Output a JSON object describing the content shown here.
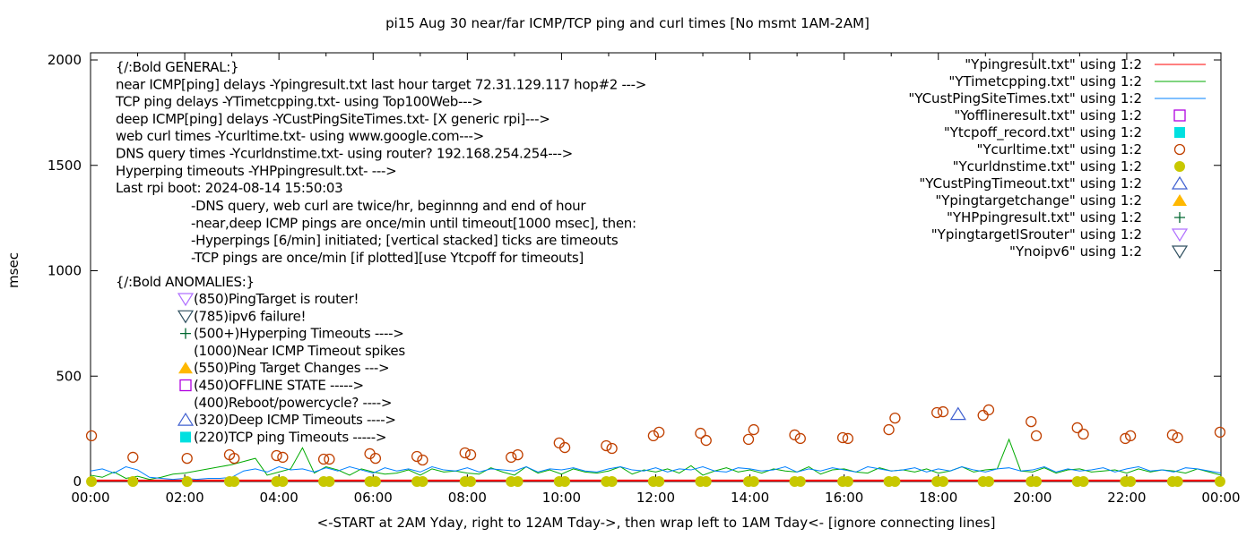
{
  "chart_data": {
    "type": "line",
    "title": "pi15 Aug 30  near/far ICMP/TCP ping and curl times [No msmt 1AM-2AM]",
    "xlabel": "<-START at 2AM Yday, right to 12AM Tday->, then wrap left to 1AM Tday<- [ignore connecting lines]",
    "ylabel": "msec",
    "xlim": [
      0,
      24
    ],
    "ylim": [
      0,
      2050
    ],
    "x_tick_labels": [
      "00:00",
      "02:00",
      "04:00",
      "06:00",
      "08:00",
      "10:00",
      "12:00",
      "14:00",
      "16:00",
      "18:00",
      "20:00",
      "22:00",
      "00:00"
    ],
    "y_ticks": [
      0,
      500,
      1000,
      1500,
      2000
    ],
    "legend_position": "top-right",
    "colors": {
      "ping": "#ff0000",
      "tcp": "#00aa00",
      "cust": "#0080ff",
      "offline": "#b000e0",
      "tcpoff": "#00e0e0",
      "curl": "#c04000",
      "dns": "#c8c800",
      "custTimeout": "#4060d0",
      "targetchange": "#ffb800",
      "hp": "#006830",
      "isrouter": "#b070ff",
      "noipv6": "#305060"
    },
    "series": [
      {
        "name": "\"Ypingresult.txt\" using 1:2",
        "key": "ping",
        "style": "line",
        "x_step_hours": 0.25,
        "values": [
          5,
          5,
          5,
          5,
          5,
          5,
          5,
          5,
          5,
          5,
          5,
          5,
          5,
          5,
          5,
          5,
          5,
          5,
          5,
          5,
          5,
          5,
          5,
          5,
          5,
          5,
          5,
          5,
          5,
          5,
          5,
          5,
          5,
          5,
          5,
          5,
          5,
          5,
          5,
          5,
          5,
          5,
          5,
          5,
          5,
          5,
          5,
          5,
          5,
          5,
          5,
          5,
          5,
          5,
          5,
          5,
          5,
          5,
          5,
          5,
          5,
          5,
          5,
          5,
          5,
          5,
          5,
          5,
          5,
          5,
          5,
          5,
          5,
          5,
          5,
          5,
          5,
          5,
          5,
          5,
          5,
          5,
          5,
          5,
          5,
          5,
          5,
          5,
          5,
          5,
          5,
          5,
          5,
          5,
          5,
          5,
          5
        ]
      },
      {
        "name": "\"YTimetcpping.txt\" using 1:2",
        "key": "tcp",
        "style": "line",
        "x_step_hours": 0.25,
        "values": [
          30,
          20,
          45,
          15,
          25,
          10,
          20,
          35,
          40,
          50,
          60,
          70,
          80,
          95,
          110,
          30,
          45,
          60,
          160,
          40,
          70,
          55,
          30,
          60,
          45,
          35,
          40,
          55,
          30,
          60,
          45,
          50,
          40,
          35,
          65,
          45,
          30,
          70,
          40,
          55,
          35,
          60,
          45,
          40,
          50,
          70,
          35,
          55,
          45,
          60,
          40,
          75,
          30,
          50,
          65,
          45,
          55,
          40,
          60,
          50,
          45,
          70,
          35,
          55,
          60,
          45,
          40,
          65,
          50,
          55,
          45,
          60,
          40,
          50,
          70,
          45,
          55,
          60,
          200,
          50,
          45,
          65,
          40,
          55,
          60,
          45,
          50,
          55,
          40,
          60,
          45,
          55,
          50,
          40,
          60,
          45,
          30
        ]
      },
      {
        "name": "\"YCustPingSiteTimes.txt\" using 1:2",
        "key": "cust",
        "style": "line",
        "x_step_hours": 0.25,
        "values": [
          50,
          60,
          40,
          70,
          55,
          20,
          15,
          10,
          15,
          10,
          15,
          15,
          20,
          50,
          60,
          45,
          70,
          55,
          60,
          45,
          65,
          50,
          70,
          55,
          40,
          65,
          50,
          60,
          45,
          70,
          55,
          50,
          65,
          45,
          60,
          55,
          50,
          70,
          45,
          60,
          55,
          65,
          50,
          45,
          60,
          70,
          55,
          50,
          65,
          45,
          60,
          55,
          70,
          50,
          45,
          65,
          60,
          50,
          55,
          70,
          45,
          60,
          50,
          65,
          55,
          45,
          70,
          60,
          50,
          55,
          65,
          45,
          60,
          50,
          70,
          55,
          45,
          60,
          65,
          50,
          55,
          70,
          45,
          60,
          50,
          55,
          65,
          45,
          60,
          70,
          50,
          55,
          45,
          65,
          60,
          50,
          40
        ]
      },
      {
        "name": "\"Yofflineresult.txt\" using 1:2",
        "key": "offline",
        "style": "open-square",
        "points": []
      },
      {
        "name": "\"Ytcpoff_record.txt\" using 1:2",
        "key": "tcpoff",
        "style": "filled-square",
        "points": []
      },
      {
        "name": "\"Ycurltime.txt\" using 1:2",
        "key": "curl",
        "style": "open-circle",
        "points": [
          [
            0.02,
            217
          ],
          [
            0.9,
            115
          ],
          [
            2.05,
            110
          ],
          [
            2.95,
            127
          ],
          [
            3.05,
            110
          ],
          [
            3.95,
            123
          ],
          [
            4.08,
            115
          ],
          [
            4.95,
            106
          ],
          [
            5.07,
            106
          ],
          [
            5.93,
            132
          ],
          [
            6.05,
            110
          ],
          [
            6.93,
            119
          ],
          [
            7.05,
            102
          ],
          [
            7.95,
            136
          ],
          [
            8.07,
            127
          ],
          [
            8.93,
            115
          ],
          [
            9.07,
            127
          ],
          [
            9.95,
            183
          ],
          [
            10.07,
            161
          ],
          [
            10.95,
            170
          ],
          [
            11.07,
            157
          ],
          [
            11.95,
            217
          ],
          [
            12.07,
            234
          ],
          [
            12.95,
            229
          ],
          [
            13.07,
            195
          ],
          [
            13.97,
            200
          ],
          [
            14.08,
            246
          ],
          [
            14.95,
            221
          ],
          [
            15.07,
            204
          ],
          [
            15.97,
            208
          ],
          [
            16.08,
            204
          ],
          [
            16.95,
            246
          ],
          [
            17.08,
            301
          ],
          [
            17.97,
            327
          ],
          [
            18.1,
            331
          ],
          [
            18.95,
            314
          ],
          [
            19.07,
            340
          ],
          [
            19.97,
            284
          ],
          [
            20.08,
            217
          ],
          [
            20.95,
            255
          ],
          [
            21.08,
            225
          ],
          [
            21.97,
            204
          ],
          [
            22.08,
            217
          ],
          [
            22.97,
            221
          ],
          [
            23.08,
            208
          ],
          [
            23.98,
            234
          ]
        ]
      },
      {
        "name": "\"Ycurldnstime.txt\" using 1:2",
        "key": "dns",
        "style": "filled-circle",
        "points": [
          [
            0.02,
            0
          ],
          [
            0.9,
            0
          ],
          [
            2.05,
            0
          ],
          [
            2.95,
            0
          ],
          [
            3.05,
            0
          ],
          [
            3.95,
            0
          ],
          [
            4.08,
            0
          ],
          [
            4.95,
            0
          ],
          [
            5.07,
            0
          ],
          [
            5.93,
            0
          ],
          [
            6.05,
            0
          ],
          [
            6.93,
            0
          ],
          [
            7.05,
            0
          ],
          [
            7.95,
            0
          ],
          [
            8.07,
            0
          ],
          [
            8.93,
            0
          ],
          [
            9.07,
            0
          ],
          [
            9.95,
            0
          ],
          [
            10.07,
            0
          ],
          [
            10.95,
            0
          ],
          [
            11.07,
            0
          ],
          [
            11.95,
            0
          ],
          [
            12.07,
            0
          ],
          [
            12.95,
            0
          ],
          [
            13.07,
            0
          ],
          [
            13.97,
            0
          ],
          [
            14.08,
            0
          ],
          [
            14.95,
            0
          ],
          [
            15.07,
            0
          ],
          [
            15.97,
            0
          ],
          [
            16.08,
            0
          ],
          [
            16.95,
            0
          ],
          [
            17.08,
            0
          ],
          [
            17.97,
            0
          ],
          [
            18.1,
            0
          ],
          [
            18.95,
            0
          ],
          [
            19.07,
            0
          ],
          [
            19.97,
            0
          ],
          [
            20.08,
            0
          ],
          [
            20.95,
            0
          ],
          [
            21.08,
            0
          ],
          [
            21.97,
            0
          ],
          [
            22.08,
            0
          ],
          [
            22.97,
            0
          ],
          [
            23.08,
            0
          ],
          [
            23.98,
            0
          ]
        ]
      },
      {
        "name": "\"YCustPingTimeout.txt\" using 1:2",
        "key": "custTimeout",
        "style": "open-triangle",
        "points": [
          [
            18.42,
            320
          ]
        ]
      },
      {
        "name": "\"Ypingtargetchange\" using 1:2",
        "key": "targetchange",
        "style": "filled-triangle",
        "points": []
      },
      {
        "name": "\"YHPpingresult.txt\" using 1:2",
        "key": "hp",
        "style": "plus",
        "points": []
      },
      {
        "name": "\"YpingtargetISrouter\" using 1:2",
        "key": "isrouter",
        "style": "open-triangle-down",
        "points": []
      },
      {
        "name": "\"Ynoipv6\" using 1:2",
        "key": "noipv6",
        "style": "open-triangle-down",
        "points": []
      }
    ],
    "annotations": {
      "general": [
        "{/:Bold GENERAL:}",
        "near ICMP[ping] delays -Ypingresult.txt last hour target 72.31.129.117 hop#2 --->",
        "TCP ping delays -YTimetcpping.txt- using Top100Web--->",
        "deep ICMP[ping] delays -YCustPingSiteTimes.txt- [X generic rpi]--->",
        "web curl times -Ycurltime.txt- using www.google.com--->",
        "DNS query times -Ycurldnstime.txt- using router? 192.168.254.254--->",
        "Hyperping timeouts -YHPpingresult.txt- --->",
        "Last rpi boot: 2024-08-14 15:50:03"
      ],
      "notes": [
        "-DNS query, web curl are twice/hr, beginnng and end of hour",
        "-near,deep ICMP pings are once/min until timeout[1000 msec], then:",
        "  -Hyperpings [6/min] initiated; [vertical stacked] ticks are timeouts",
        "-TCP pings are once/min [if plotted][use Ytcpoff for timeouts]"
      ],
      "anomalies_header": "{/:Bold ANOMALIES:}",
      "anomalies": [
        {
          "text": "(850)PingTarget is router!",
          "marker": "isrouter"
        },
        {
          "text": "(785)ipv6 failure!",
          "marker": "noipv6"
        },
        {
          "text": "(500+)Hyperping Timeouts ---->",
          "marker": "hp"
        },
        {
          "text": "(1000)Near ICMP Timeout spikes",
          "marker": ""
        },
        {
          "text": "(550)Ping Target Changes --->",
          "marker": "targetchange"
        },
        {
          "text": "(450)OFFLINE STATE ----->",
          "marker": "offline"
        },
        {
          "text": "(400)Reboot/powercycle? ---->",
          "marker": ""
        },
        {
          "text": "(320)Deep ICMP Timeouts ---->",
          "marker": "custTimeout"
        },
        {
          "text": "(220)TCP ping Timeouts ----->",
          "marker": "tcpoff"
        }
      ]
    }
  }
}
